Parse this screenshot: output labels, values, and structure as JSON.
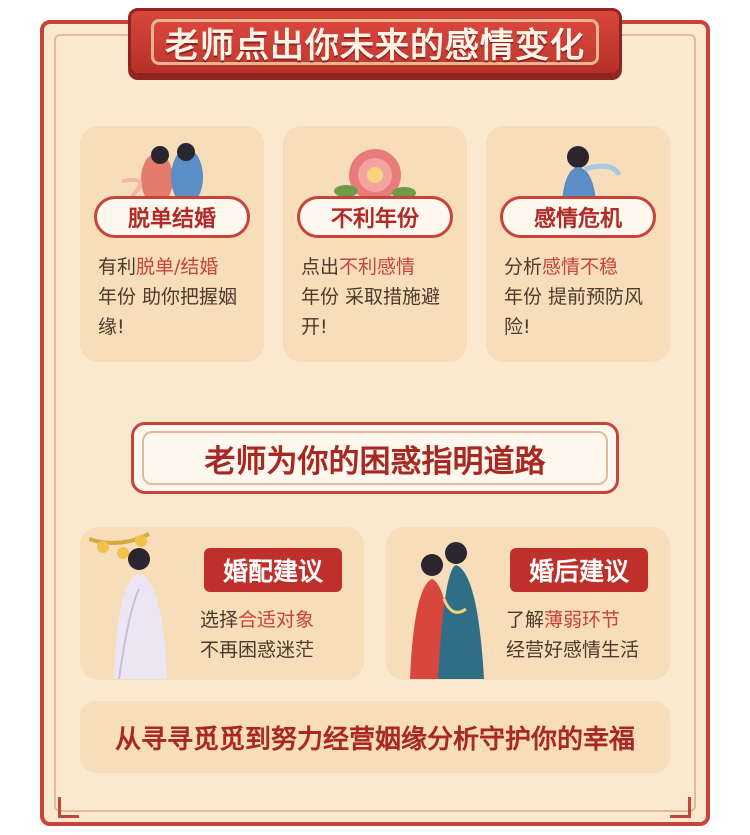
{
  "header": {
    "title": "老师点出你未来的感情变化"
  },
  "cards": [
    {
      "title": "脱单结婚",
      "icon": "couple-illustration",
      "desc_parts": [
        {
          "t": "有利",
          "hl": false
        },
        {
          "t": "脱单/结婚",
          "hl": true
        },
        {
          "t": "年份 助你把握姻缘!",
          "hl": false
        }
      ]
    },
    {
      "title": "不利年份",
      "icon": "peony-flower-illustration",
      "desc_parts": [
        {
          "t": "点出",
          "hl": false
        },
        {
          "t": "不利感情",
          "hl": true
        },
        {
          "t": "年份 采取措施避开!",
          "hl": false
        }
      ]
    },
    {
      "title": "感情危机",
      "icon": "lady-illustration",
      "desc_parts": [
        {
          "t": "分析",
          "hl": false
        },
        {
          "t": "感情不稳",
          "hl": true
        },
        {
          "t": "年份 提前预防风险!",
          "hl": false
        }
      ]
    }
  ],
  "section2": {
    "title": "老师为你的困惑指明道路"
  },
  "wide_cards": [
    {
      "tag": "婚配建议",
      "icon": "white-robed-lady-illustration",
      "line1": [
        {
          "t": "选择",
          "hl": false
        },
        {
          "t": "合适对象",
          "hl": true
        }
      ],
      "line2": "不再困惑迷茫"
    },
    {
      "tag": "婚后建议",
      "icon": "embracing-couple-illustration",
      "line1": [
        {
          "t": "了解",
          "hl": false
        },
        {
          "t": "薄弱环节",
          "hl": true
        }
      ],
      "line2": "经营好感情生活"
    }
  ],
  "footer": {
    "text": "从寻寻觅觅到努力经营姻缘分析守护你的幸福"
  }
}
